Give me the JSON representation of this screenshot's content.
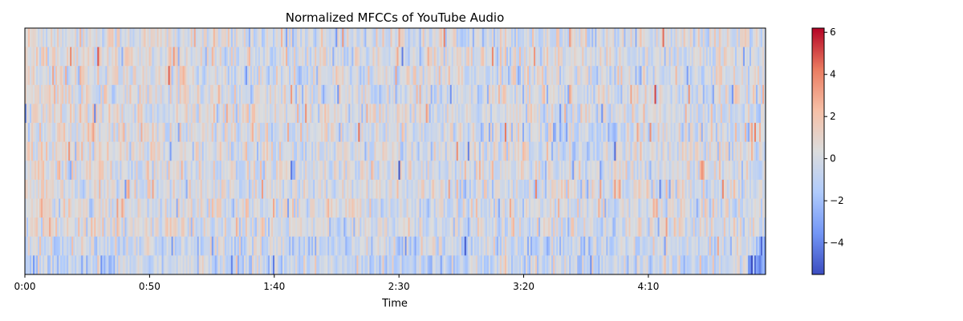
{
  "chart_data": {
    "type": "heatmap",
    "title": "Normalized MFCCs of YouTube Audio",
    "xlabel": "Time",
    "ylabel": "",
    "y_ticks_shown": false,
    "rows": 13,
    "x_unit": "seconds",
    "xlim": [
      0,
      297
    ],
    "x_ticks": [
      {
        "value": 0,
        "label": "0:00"
      },
      {
        "value": 50,
        "label": "0:50"
      },
      {
        "value": 100,
        "label": "1:40"
      },
      {
        "value": 150,
        "label": "2:30"
      },
      {
        "value": 200,
        "label": "3:20"
      },
      {
        "value": 250,
        "label": "4:10"
      }
    ],
    "colormap": "coolwarm",
    "colormap_stops": [
      "#3b4cc0",
      "#7396f5",
      "#b0cbfc",
      "#dcdddd",
      "#f6bfa6",
      "#ea7b60",
      "#b40426"
    ],
    "value_range": [
      -5.5,
      6.2
    ],
    "colorbar_ticks": [
      {
        "value": 6,
        "label": "6"
      },
      {
        "value": 4,
        "label": "4"
      },
      {
        "value": 2,
        "label": "2"
      },
      {
        "value": 0,
        "label": "0"
      },
      {
        "value": -2,
        "label": "−2"
      },
      {
        "value": -4,
        "label": "−4"
      }
    ],
    "colorbar_location": "right",
    "grid": false,
    "legend": "none"
  }
}
